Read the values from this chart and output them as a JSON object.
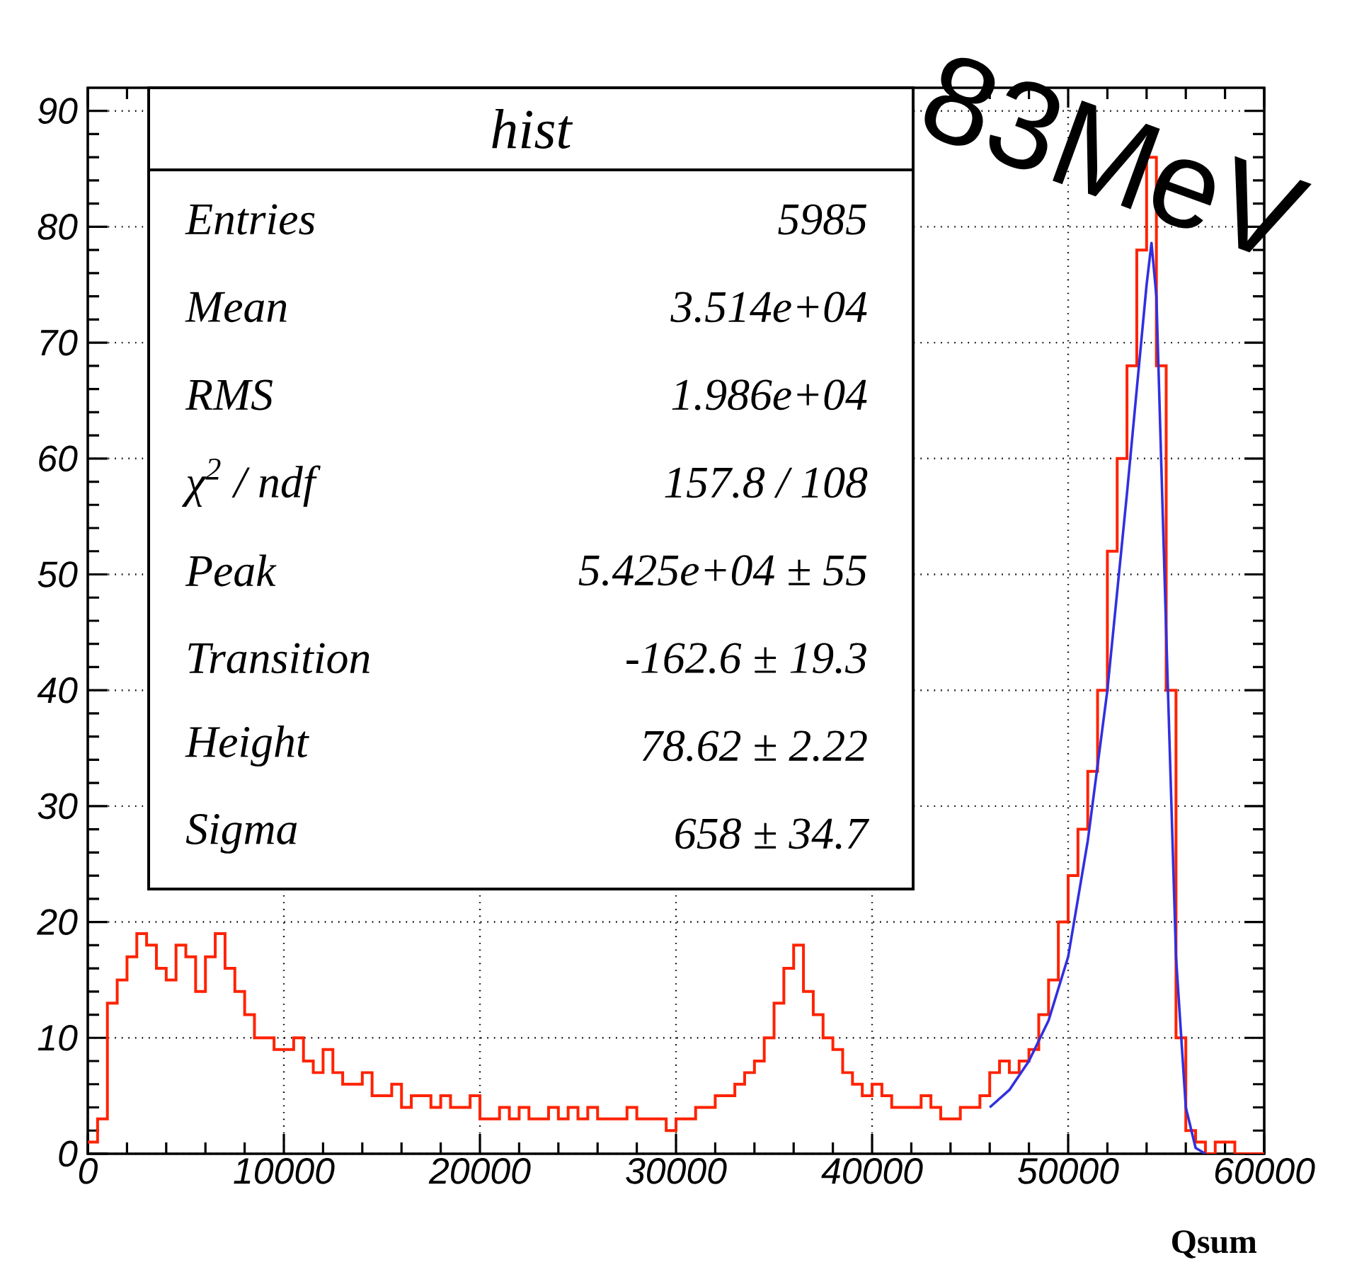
{
  "chart_data": {
    "type": "histogram",
    "xlabel": "Qsum",
    "bins": [
      0,
      500,
      1000,
      1500,
      2000,
      2500,
      3000,
      3500,
      4000,
      4500,
      5000,
      5500,
      6000,
      6500,
      7000,
      7500,
      8000,
      8500,
      9000,
      9500,
      10000,
      10500,
      11000,
      11500,
      12000,
      12500,
      13000,
      13500,
      14000,
      14500,
      15000,
      15500,
      16000,
      16500,
      17000,
      17500,
      18000,
      18500,
      19000,
      19500,
      20000,
      20500,
      21000,
      21500,
      22000,
      22500,
      23000,
      23500,
      24000,
      24500,
      25000,
      25500,
      26000,
      26500,
      27000,
      27500,
      28000,
      28500,
      29000,
      29500,
      30000,
      30500,
      31000,
      31500,
      32000,
      32500,
      33000,
      33500,
      34000,
      34500,
      35000,
      35500,
      36000,
      36500,
      37000,
      37500,
      38000,
      38500,
      39000,
      39500,
      40000,
      40500,
      41000,
      41500,
      42000,
      42500,
      43000,
      43500,
      44000,
      44500,
      45000,
      45500,
      46000,
      46500,
      47000,
      47500,
      48000,
      48500,
      49000,
      49500,
      50000,
      50500,
      51000,
      51500,
      52000,
      52500,
      53000,
      53500,
      54000,
      54500,
      55000,
      55500,
      56000,
      56500,
      57000,
      57500,
      58000,
      58500,
      59000,
      59500,
      60000
    ],
    "values": [
      1,
      3,
      13,
      15,
      17,
      19,
      18,
      16,
      15,
      18,
      17,
      14,
      17,
      19,
      16,
      14,
      12,
      10,
      10,
      9,
      9,
      10,
      8,
      7,
      9,
      7,
      6,
      6,
      7,
      5,
      5,
      6,
      4,
      5,
      5,
      4,
      5,
      4,
      4,
      5,
      3,
      3,
      4,
      3,
      4,
      3,
      3,
      4,
      3,
      4,
      3,
      4,
      3,
      3,
      3,
      4,
      3,
      3,
      3,
      2,
      3,
      3,
      4,
      4,
      5,
      5,
      6,
      7,
      8,
      10,
      13,
      16,
      18,
      14,
      12,
      10,
      9,
      7,
      6,
      5,
      6,
      5,
      4,
      4,
      4,
      5,
      4,
      3,
      3,
      4,
      4,
      5,
      7,
      8,
      7,
      8,
      9,
      12,
      15,
      20,
      24,
      28,
      33,
      40,
      52,
      60,
      68,
      78,
      86,
      68,
      40,
      10,
      2,
      1,
      0,
      1,
      1,
      0,
      0,
      0
    ],
    "color": "#ff2200",
    "series": [
      {
        "type": "line",
        "color": "#3030e0",
        "x": [
          46000,
          47000,
          48000,
          49000,
          50000,
          51000,
          52000,
          53000,
          53500,
          54000,
          54250,
          54500,
          55000,
          55500,
          56000,
          56500,
          57000
        ],
        "values": [
          4,
          5.5,
          8,
          11.5,
          17,
          27,
          40,
          57,
          66,
          75,
          78.6,
          74,
          45,
          17,
          4,
          0.5,
          0
        ]
      }
    ],
    "xlim": [
      0,
      60000
    ],
    "ylim": [
      0,
      92
    ],
    "xticks": [
      0,
      10000,
      20000,
      30000,
      40000,
      50000,
      60000
    ],
    "yticks": [
      0,
      10,
      20,
      30,
      40,
      50,
      60,
      70,
      80,
      90
    ],
    "grid": true,
    "marker": "none",
    "line_style": "solid",
    "annotations": [
      "83MeV",
      "hist",
      "Entries",
      "5985",
      "Mean",
      "3.514e+04",
      "RMS",
      "1.986e+04",
      "χ$^{2}$ / ndf",
      "157.8 / 108",
      "Peak",
      "5.425e+04 ± 55",
      "Transition",
      "-162.6 ± 19.3",
      "Height",
      "78.62 ± 2.22",
      "Sigma",
      "658 ± 34.7"
    ]
  }
}
